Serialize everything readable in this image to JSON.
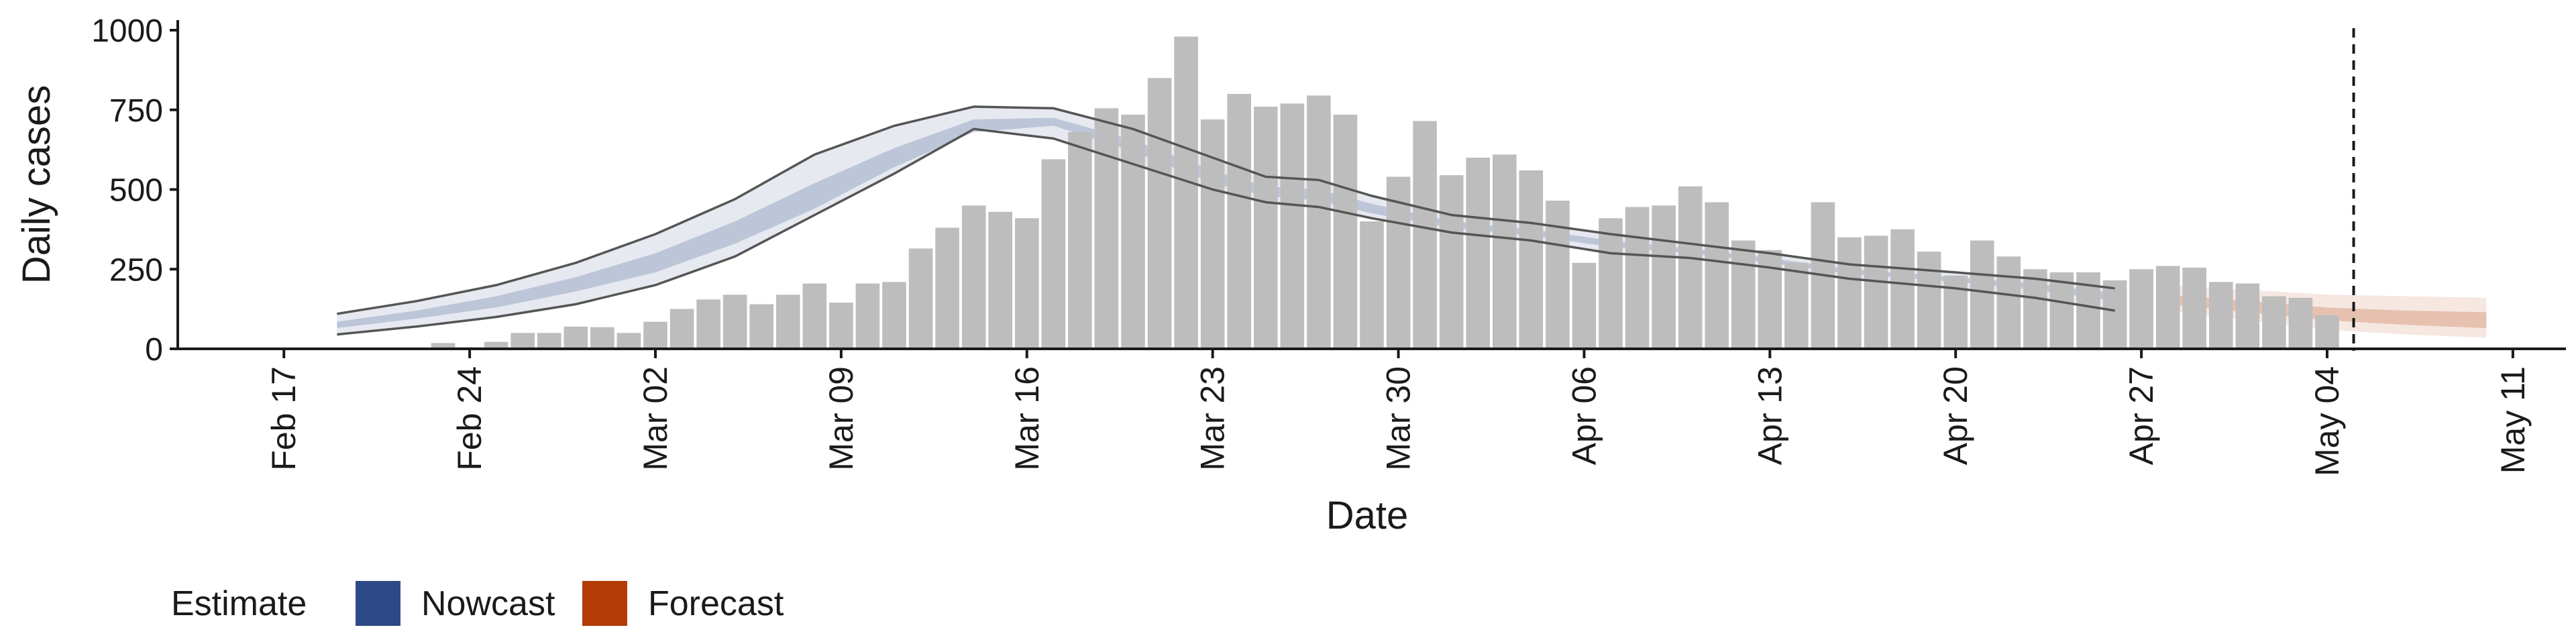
{
  "colors": {
    "bars": "#bdbdbd",
    "nowcast": "#2e4a86",
    "forecast": "#b33c06",
    "outline": "#555555",
    "axis": "#1a1a1a"
  },
  "chart_data": {
    "type": "bar",
    "xlabel": "Date",
    "ylabel": "Daily cases",
    "ylim": [
      0,
      1000
    ],
    "yticks": [
      0,
      250,
      500,
      750,
      1000
    ],
    "xlim": [
      "2020-02-13",
      "2020-05-13"
    ],
    "xticks": [
      {
        "date": "2020-02-17",
        "label": "Feb 17"
      },
      {
        "date": "2020-02-24",
        "label": "Feb 24"
      },
      {
        "date": "2020-03-02",
        "label": "Mar 02"
      },
      {
        "date": "2020-03-09",
        "label": "Mar 09"
      },
      {
        "date": "2020-03-16",
        "label": "Mar 16"
      },
      {
        "date": "2020-03-23",
        "label": "Mar 23"
      },
      {
        "date": "2020-03-30",
        "label": "Mar 30"
      },
      {
        "date": "2020-04-06",
        "label": "Apr 06"
      },
      {
        "date": "2020-04-13",
        "label": "Apr 13"
      },
      {
        "date": "2020-04-20",
        "label": "Apr 20"
      },
      {
        "date": "2020-04-27",
        "label": "Apr 27"
      },
      {
        "date": "2020-05-04",
        "label": "May 04"
      },
      {
        "date": "2020-05-11",
        "label": "May 11"
      }
    ],
    "vline": "2020-05-05",
    "legend": {
      "title": "Estimate",
      "position": "bottom-left",
      "items": [
        {
          "label": "Nowcast",
          "color": "#2e4a86"
        },
        {
          "label": "Forecast",
          "color": "#b33c06"
        }
      ]
    },
    "bars": {
      "start": "2020-02-23",
      "values": [
        18,
        5,
        22,
        50,
        50,
        70,
        68,
        50,
        85,
        125,
        155,
        170,
        140,
        170,
        205,
        145,
        205,
        210,
        315,
        380,
        450,
        430,
        410,
        595,
        680,
        755,
        735,
        850,
        980,
        720,
        800,
        760,
        770,
        795,
        735,
        400,
        540,
        715,
        545,
        600,
        610,
        560,
        465,
        270,
        410,
        445,
        450,
        510,
        460,
        340,
        310,
        270,
        460,
        350,
        355,
        375,
        305,
        230,
        340,
        290,
        250,
        240,
        240,
        215,
        250,
        260,
        255,
        210,
        205,
        165,
        160,
        105
      ]
    },
    "series": [
      {
        "name": "Nowcast",
        "color": "#2e4a86",
        "dates": [
          "2020-02-19",
          "2020-02-22",
          "2020-02-25",
          "2020-02-28",
          "2020-03-02",
          "2020-03-05",
          "2020-03-08",
          "2020-03-11",
          "2020-03-14",
          "2020-03-17",
          "2020-03-20",
          "2020-03-23",
          "2020-03-25",
          "2020-03-27",
          "2020-03-29",
          "2020-04-01",
          "2020-04-04",
          "2020-04-07",
          "2020-04-10",
          "2020-04-13",
          "2020-04-16",
          "2020-04-20",
          "2020-04-23",
          "2020-04-26"
        ],
        "outer_upper": [
          110,
          150,
          200,
          270,
          360,
          470,
          610,
          700,
          760,
          755,
          690,
          600,
          540,
          530,
          480,
          420,
          395,
          360,
          330,
          300,
          265,
          240,
          220,
          190
        ],
        "inner_upper": [
          85,
          120,
          165,
          225,
          300,
          400,
          520,
          630,
          720,
          725,
          655,
          560,
          510,
          500,
          455,
          400,
          375,
          340,
          315,
          285,
          250,
          225,
          205,
          175
        ],
        "inner_lower": [
          65,
          95,
          130,
          180,
          240,
          330,
          440,
          570,
          680,
          700,
          620,
          520,
          480,
          465,
          425,
          380,
          355,
          320,
          300,
          270,
          235,
          210,
          185,
          150
        ],
        "outer_lower": [
          45,
          70,
          100,
          140,
          200,
          290,
          420,
          550,
          690,
          660,
          580,
          500,
          460,
          445,
          410,
          365,
          340,
          300,
          285,
          255,
          220,
          190,
          160,
          120
        ]
      },
      {
        "name": "Forecast",
        "color": "#b33c06",
        "dates": [
          "2020-04-28",
          "2020-05-01",
          "2020-05-04",
          "2020-05-07",
          "2020-05-10"
        ],
        "outer_upper": [
          200,
          185,
          170,
          165,
          160
        ],
        "inner_upper": [
          170,
          150,
          130,
          120,
          115
        ],
        "inner_lower": [
          140,
          115,
          90,
          75,
          65
        ],
        "outer_lower": [
          120,
          90,
          60,
          45,
          35
        ]
      }
    ]
  }
}
